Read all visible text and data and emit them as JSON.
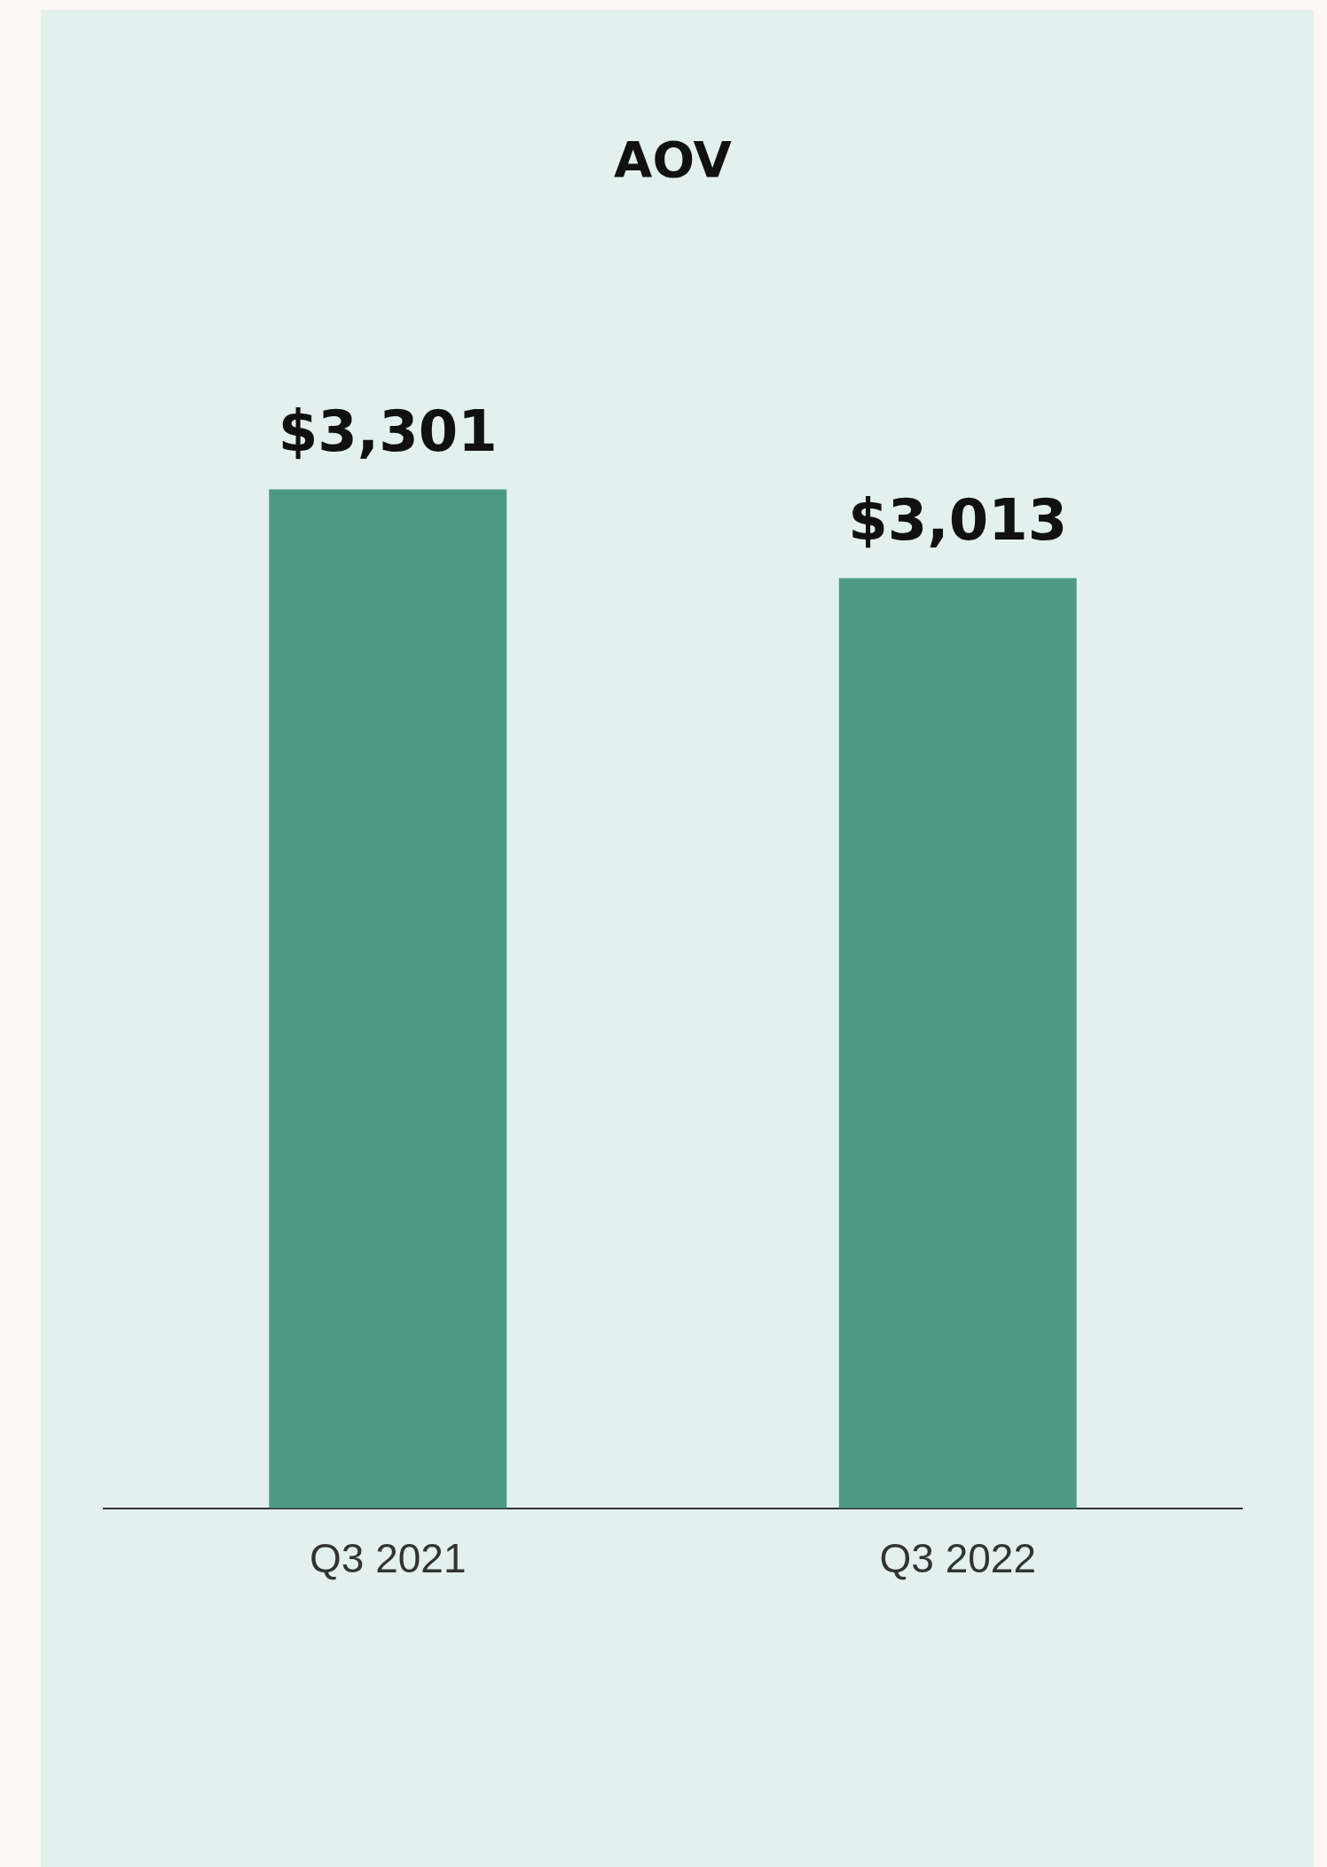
{
  "chart_data": {
    "type": "bar",
    "title": "AOV",
    "categories": [
      "Q3 2021",
      "Q3 2022"
    ],
    "values": [
      3301,
      3013
    ],
    "value_labels": [
      "$3,301",
      "$3,013"
    ],
    "color": "#4c9a84",
    "tick_labels": "x"
  }
}
